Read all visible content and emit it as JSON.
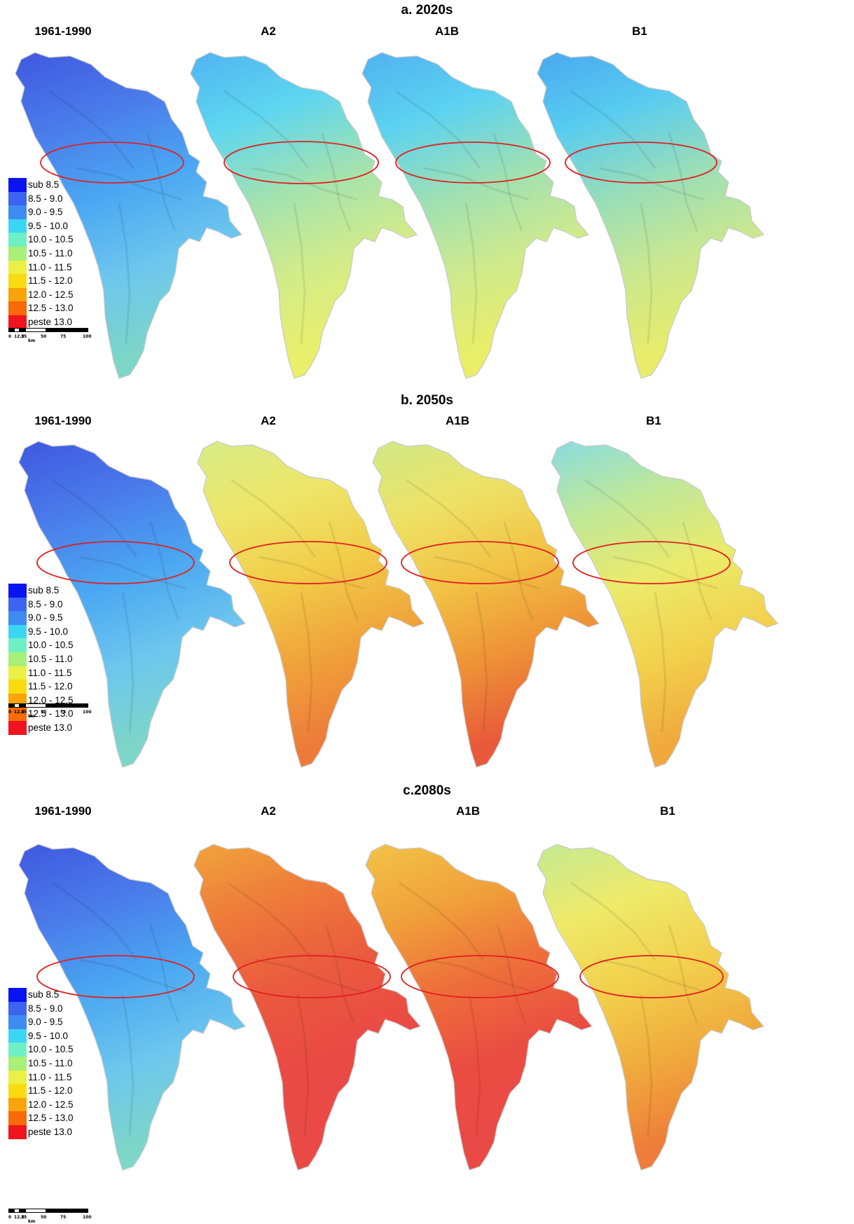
{
  "panels": [
    {
      "title": "a. 2020s",
      "maps": [
        {
          "title": "1961-1990",
          "colors": [
            "#3f58e0",
            "#4a7aea",
            "#4aa6f2",
            "#6cc6ee",
            "#7ed6c8"
          ]
        },
        {
          "title": "A2",
          "colors": [
            "#4fb4f0",
            "#5ed6f0",
            "#a2e2b0",
            "#d2ec8a",
            "#eaef6a"
          ]
        },
        {
          "title": "A1B",
          "colors": [
            "#4fb2f0",
            "#5cd2f0",
            "#9ee0b4",
            "#d0ea8c",
            "#eaee66"
          ]
        },
        {
          "title": "B1",
          "colors": [
            "#4aa8f0",
            "#58ccf0",
            "#9adeb8",
            "#cce88e",
            "#e8ec6a"
          ]
        }
      ]
    },
    {
      "title": "b. 2050s",
      "maps": [
        {
          "title": "1961-1990",
          "colors": [
            "#3f58e0",
            "#4a7aea",
            "#4aa6f2",
            "#6cc6ee",
            "#7ed6c8"
          ]
        },
        {
          "title": "A2",
          "colors": [
            "#d6ec86",
            "#eee66a",
            "#f2cc48",
            "#f0a23a",
            "#ee7a3a"
          ]
        },
        {
          "title": "A1B",
          "colors": [
            "#d0ea88",
            "#eee266",
            "#f2c244",
            "#ee9236",
            "#e8583a"
          ]
        },
        {
          "title": "B1",
          "colors": [
            "#88dce0",
            "#c0e898",
            "#ecea6a",
            "#f2d04c",
            "#f0a83c"
          ]
        }
      ]
    },
    {
      "title": "c.2080s",
      "maps": [
        {
          "title": "1961-1990",
          "colors": [
            "#3f58e0",
            "#4a7aea",
            "#4aa6f2",
            "#6cc6ee",
            "#7ed6c8"
          ]
        },
        {
          "title": "A2",
          "colors": [
            "#f0a43c",
            "#ee7a3a",
            "#ea5a3e",
            "#ea4a44",
            "#ea4a46"
          ]
        },
        {
          "title": "A1B",
          "colors": [
            "#f2c448",
            "#f0a23a",
            "#ee6e3a",
            "#ea4c42",
            "#ea4a46"
          ]
        },
        {
          "title": "B1",
          "colors": [
            "#c4ea94",
            "#eeea6a",
            "#f2d04c",
            "#f0aa3c",
            "#ee7c3a"
          ]
        }
      ]
    }
  ],
  "legend": {
    "items": [
      {
        "label": "sub 8.5",
        "color": "#0a14f0"
      },
      {
        "label": "8.5 - 9.0",
        "color": "#3c64f0"
      },
      {
        "label": "9.0 - 9.5",
        "color": "#3c8cf2"
      },
      {
        "label": "9.5 - 10.0",
        "color": "#3cd6f5"
      },
      {
        "label": "10.0 - 10.5",
        "color": "#6ef0c4"
      },
      {
        "label": "10.5 - 11.0",
        "color": "#a8f078"
      },
      {
        "label": "11.0 - 11.5",
        "color": "#eaf046"
      },
      {
        "label": "11.5 - 12.0",
        "color": "#f8dc10"
      },
      {
        "label": "12.0 - 12.5",
        "color": "#f8a40a"
      },
      {
        "label": "12.5 - 13.0",
        "color": "#f86a0a"
      },
      {
        "label": "peste 13.0",
        "color": "#f0141e"
      }
    ]
  },
  "scalebar": {
    "ticks": [
      "0",
      "12.5",
      "25",
      "50",
      "75",
      "100"
    ],
    "unit": "km"
  },
  "highlight_color": "#e02020"
}
